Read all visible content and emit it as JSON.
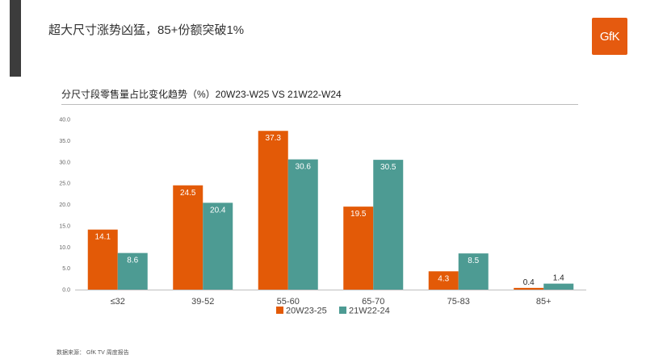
{
  "slide": {
    "title": "超大尺寸涨势凶猛，85+份额突破1%",
    "logo_text": "GfK",
    "source": "数据来源： GfK TV 周度报告"
  },
  "colors": {
    "series_1": "#e35a07",
    "series_2": "#4d9b93",
    "accent_bar": "#3c3c3c",
    "logo_bg": "#e55a0f"
  },
  "chart_data": {
    "type": "bar",
    "title": "分尺寸段零售量占比变化趋势（%）20W23-W25  VS 21W22-W24",
    "categories": [
      "≤32",
      "39-52",
      "55-60",
      "65-70",
      "75-83",
      "85+"
    ],
    "series": [
      {
        "name": "20W23-25",
        "values": [
          14.1,
          24.5,
          37.3,
          19.5,
          4.3,
          0.4
        ]
      },
      {
        "name": "21W22-24",
        "values": [
          8.6,
          20.4,
          30.6,
          30.5,
          8.5,
          1.4
        ]
      }
    ],
    "data_labels": [
      [
        "14.1",
        "24.5",
        "37.3",
        "19.5",
        "4.3",
        "0.4"
      ],
      [
        "8.6",
        "20.4",
        "30.6",
        "30.5",
        "8.5",
        "1.4"
      ]
    ],
    "yticks": [
      "0.0",
      "5.0",
      "10.0",
      "15.0",
      "20.0",
      "25.0",
      "30.0",
      "35.0",
      "40.0"
    ],
    "ylim": [
      0,
      40
    ],
    "grid": false,
    "legend_position": "bottom"
  }
}
